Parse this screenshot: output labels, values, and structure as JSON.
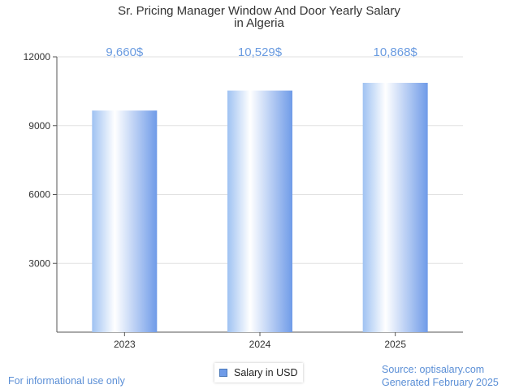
{
  "chart_data": {
    "type": "bar",
    "title_lines": [
      "Sr. Pricing Manager Window And Door Yearly Salary",
      "in Algeria"
    ],
    "categories": [
      "2023",
      "2024",
      "2025"
    ],
    "series": [
      {
        "name": "Salary in USD",
        "values": [
          9660,
          10529,
          10868
        ]
      }
    ],
    "value_labels": [
      "9,660$",
      "10,529$",
      "10,868$"
    ],
    "yticks": [
      "3000",
      "6000",
      "9000",
      "12000"
    ],
    "ylim": [
      0,
      12000
    ],
    "grid": true,
    "legend": "bottom-center",
    "colors": {
      "bar_edge": "#6f9be8",
      "bar_mid": "#ffffff",
      "value_label": "#6a9be0",
      "legend_swatch": "#6f9be8"
    }
  },
  "footer": {
    "left_note": "For informational use only",
    "source": "Source: optisalary.com",
    "generated": "Generated February 2025"
  }
}
